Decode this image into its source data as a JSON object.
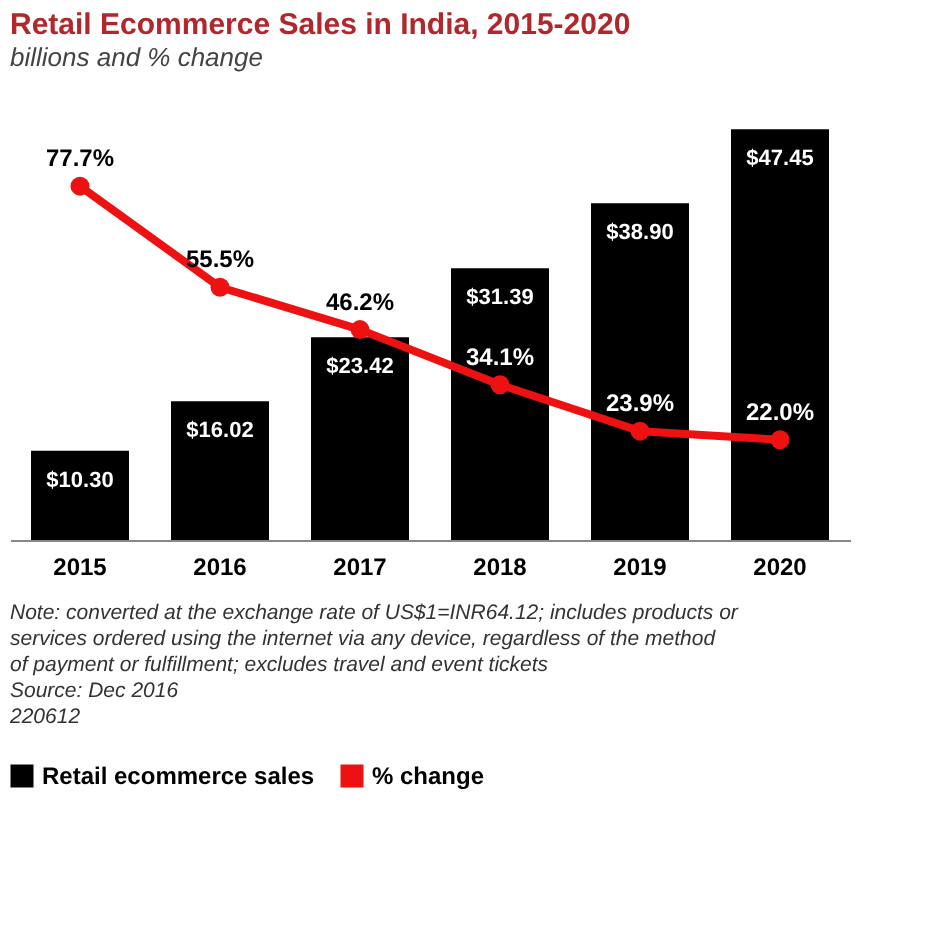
{
  "chart_data": {
    "type": "bar",
    "title": "Retail Ecommerce Sales in India, 2015-2020",
    "subtitle": "billions and % change",
    "categories": [
      "2015",
      "2016",
      "2017",
      "2018",
      "2019",
      "2020"
    ],
    "series": [
      {
        "name": "Retail ecommerce sales",
        "color": "#000000",
        "values": [
          10.3,
          16.02,
          23.42,
          31.39,
          38.9,
          47.45
        ],
        "value_labels": [
          "$10.30",
          "$16.02",
          "$23.42",
          "$31.39",
          "$38.90",
          "$47.45"
        ]
      },
      {
        "name": "% change",
        "type": "line",
        "axis": "y2",
        "color": "#ee1111",
        "marker": "circle",
        "values": [
          77.7,
          55.5,
          46.2,
          34.1,
          23.9,
          22.0
        ],
        "value_labels": [
          "77.7%",
          "55.5%",
          "46.2%",
          "34.1%",
          "23.9%",
          "22.0%"
        ]
      }
    ],
    "tick_labels": "x",
    "grid": false,
    "legend": "bottom left",
    "annotations": [
      "Note: converted at the exchange rate of US$1=INR64.12; includes products or services ordered using the internet via any device, regardless of the method of payment or fulfillment; excludes travel and event tickets",
      "Source: Dec 2016",
      "220612"
    ]
  }
}
